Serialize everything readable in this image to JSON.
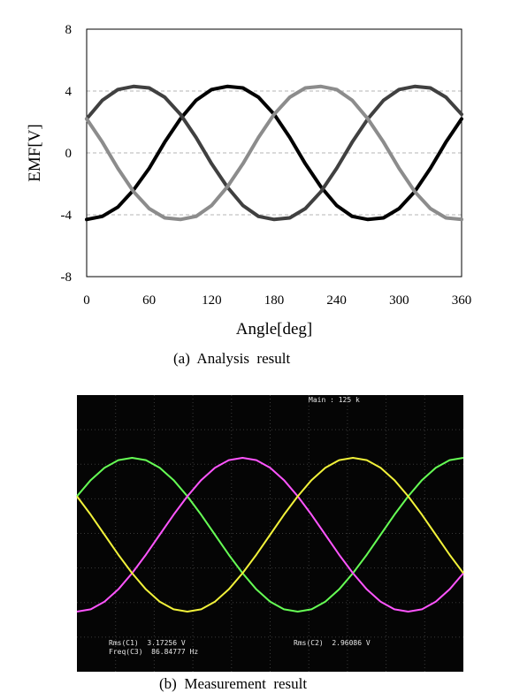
{
  "captions": {
    "a": "(a)  Analysis  result",
    "b": "(b)  Measurement  result"
  },
  "scope": {
    "top_label": "Main : 125 k",
    "readouts": [
      {
        "label": "Rms(C1)",
        "value": "3.17256 V"
      },
      {
        "label": "Freq(C3)",
        "value": "86.84777 Hz"
      },
      {
        "label": "Rms(C2)",
        "value": "2.96086 V"
      }
    ],
    "colors": {
      "background": "#050505",
      "grid": "#3a3a3a",
      "yellow": "#f2f23a",
      "green": "#66ff55",
      "magenta": "#ff55ff"
    }
  },
  "chart_data": [
    {
      "type": "line",
      "title": "",
      "xlabel": "Angle[deg]",
      "ylabel": "EMF[V]",
      "xlim": [
        0,
        360
      ],
      "ylim": [
        -8,
        8
      ],
      "xticks": [
        0,
        60,
        120,
        180,
        240,
        300,
        360
      ],
      "yticks": [
        8,
        4,
        0,
        -4,
        -8
      ],
      "grid": "horizontal-dashed",
      "x": [
        0,
        15,
        30,
        45,
        60,
        75,
        90,
        105,
        120,
        135,
        150,
        165,
        180,
        195,
        210,
        225,
        240,
        255,
        270,
        285,
        300,
        315,
        330,
        345,
        360
      ],
      "series": [
        {
          "color": "#000000",
          "values": [
            -4.3,
            -4.1,
            -3.5,
            -2.4,
            -1.0,
            0.7,
            2.2,
            3.4,
            4.1,
            4.3,
            4.2,
            3.6,
            2.5,
            1.0,
            -0.7,
            -2.2,
            -3.4,
            -4.1,
            -4.3,
            -4.2,
            -3.6,
            -2.5,
            -1.0,
            0.7,
            2.2
          ]
        },
        {
          "color": "#404040",
          "values": [
            2.2,
            3.4,
            4.1,
            4.3,
            4.2,
            3.6,
            2.5,
            1.0,
            -0.7,
            -2.2,
            -3.4,
            -4.1,
            -4.3,
            -4.2,
            -3.6,
            -2.5,
            -1.0,
            0.7,
            2.2,
            3.4,
            4.1,
            4.3,
            4.2,
            3.6,
            2.5
          ]
        },
        {
          "color": "#8c8c8c",
          "values": [
            2.2,
            0.7,
            -1.0,
            -2.5,
            -3.6,
            -4.2,
            -4.3,
            -4.1,
            -3.4,
            -2.2,
            -0.7,
            1.0,
            2.5,
            3.6,
            4.2,
            4.3,
            4.1,
            3.4,
            2.2,
            0.7,
            -1.0,
            -2.5,
            -3.6,
            -4.2,
            -4.3
          ]
        }
      ]
    },
    {
      "type": "line",
      "title": "",
      "xlabel": "",
      "ylabel": "",
      "x": [
        0,
        15,
        30,
        45,
        60,
        75,
        90,
        105,
        120,
        135,
        150,
        165,
        180,
        195,
        210,
        225,
        240,
        255,
        270,
        285,
        300,
        315,
        330,
        345,
        360,
        375,
        390,
        405,
        420
      ],
      "ylim": [
        -1.15,
        1.15
      ],
      "series": [
        {
          "color": "#66ff55",
          "values": [
            0.5,
            0.71,
            0.87,
            0.97,
            1.0,
            0.97,
            0.87,
            0.71,
            0.5,
            0.26,
            0.0,
            -0.26,
            -0.5,
            -0.71,
            -0.87,
            -0.97,
            -1.0,
            -0.97,
            -0.87,
            -0.71,
            -0.5,
            -0.26,
            0.0,
            0.26,
            0.5,
            0.71,
            0.87,
            0.97,
            1.0
          ]
        },
        {
          "color": "#ff55ff",
          "values": [
            -1.0,
            -0.97,
            -0.87,
            -0.71,
            -0.5,
            -0.26,
            0.0,
            0.26,
            0.5,
            0.71,
            0.87,
            0.97,
            1.0,
            0.97,
            0.87,
            0.71,
            0.5,
            0.26,
            0.0,
            -0.26,
            -0.5,
            -0.71,
            -0.87,
            -0.97,
            -1.0,
            -0.97,
            -0.87,
            -0.71,
            -0.5
          ]
        },
        {
          "color": "#f2f23a",
          "values": [
            0.5,
            0.26,
            0.0,
            -0.26,
            -0.5,
            -0.71,
            -0.87,
            -0.97,
            -1.0,
            -0.97,
            -0.87,
            -0.71,
            -0.5,
            -0.26,
            0.0,
            0.26,
            0.5,
            0.71,
            0.87,
            0.97,
            1.0,
            0.97,
            0.87,
            0.71,
            0.5,
            0.26,
            0.0,
            -0.26,
            -0.5
          ]
        }
      ]
    }
  ]
}
